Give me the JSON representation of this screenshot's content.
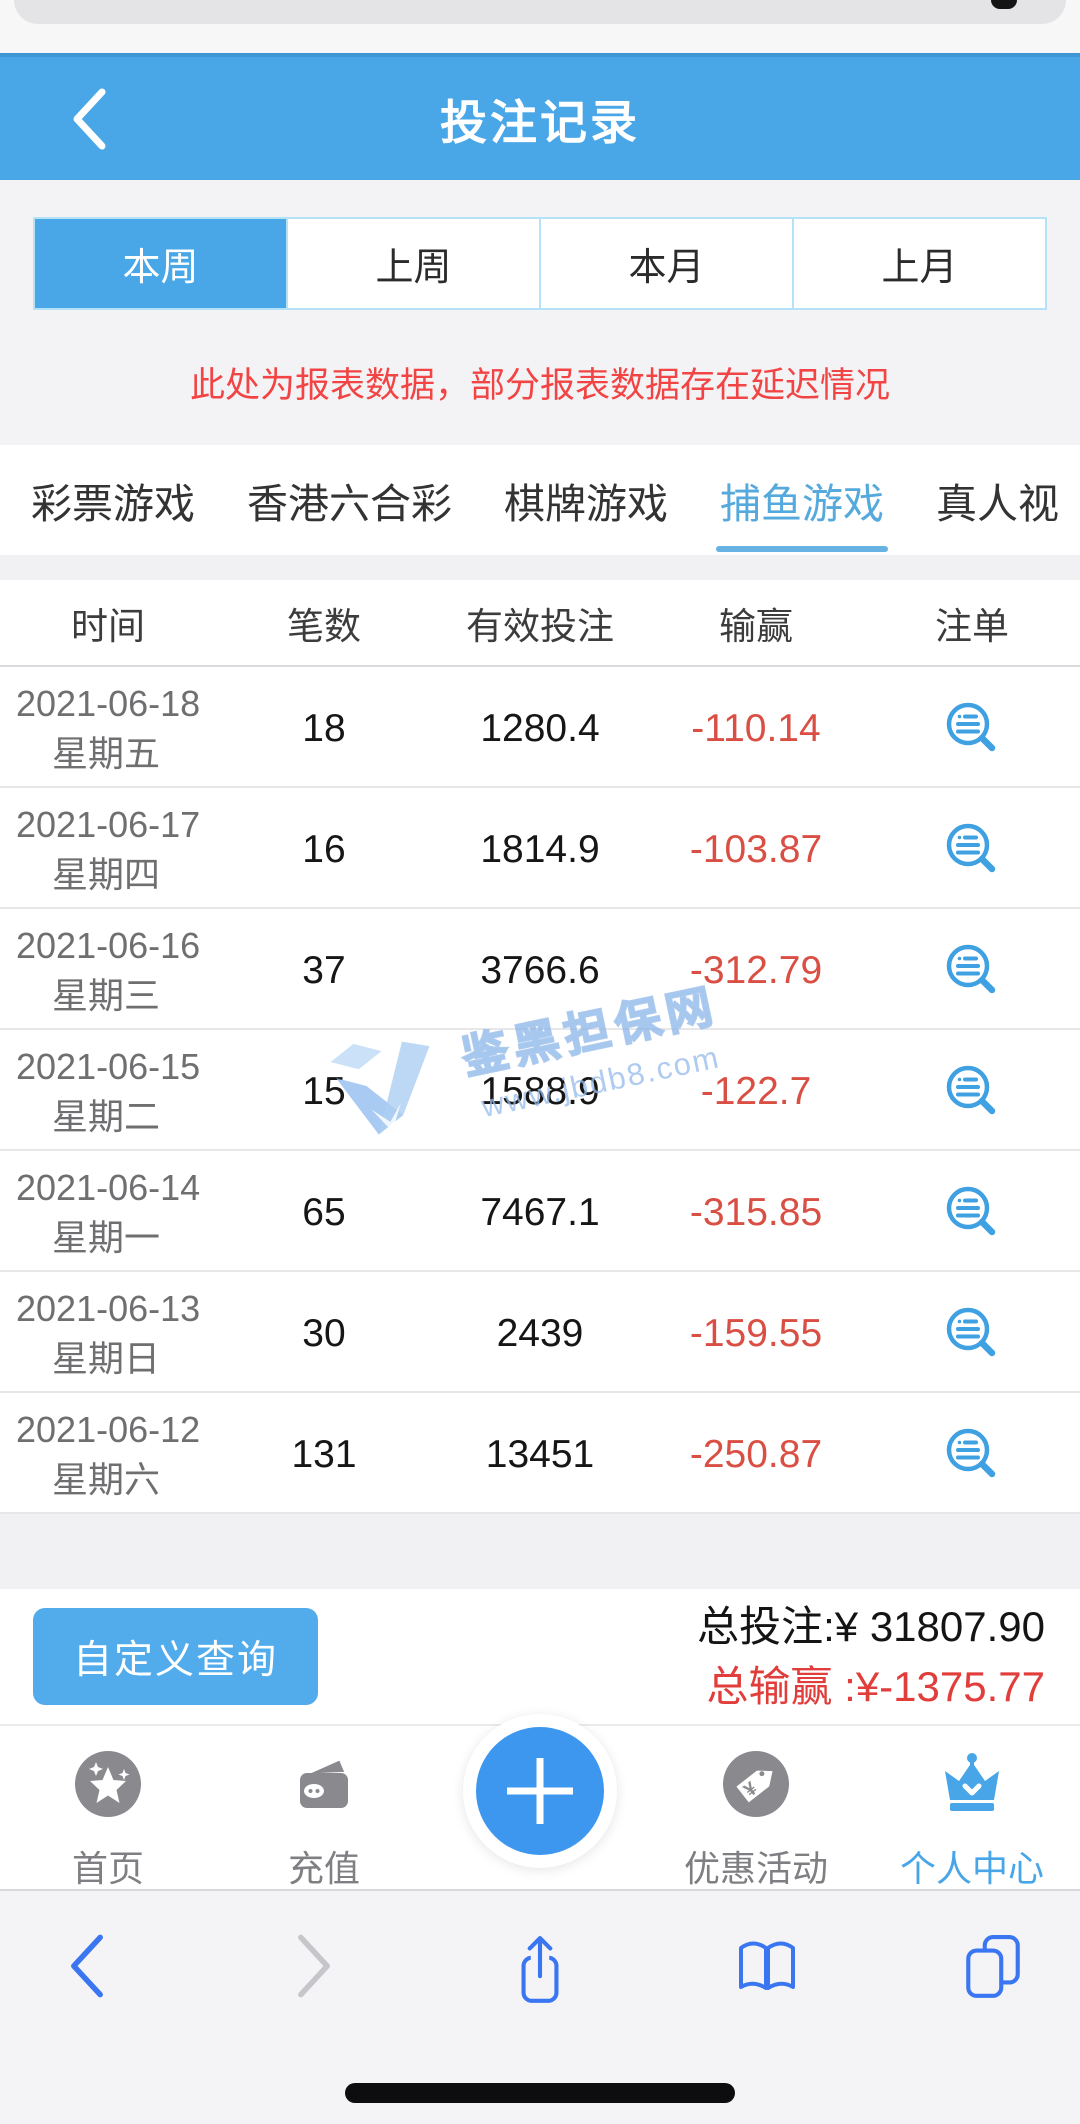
{
  "browser_top": {
    "reload_icon": "reload-remnant"
  },
  "header": {
    "title": "投注记录",
    "back_icon": "chevron-left-icon"
  },
  "period_tabs": [
    {
      "id": "this-week",
      "label": "本周",
      "active": true
    },
    {
      "id": "last-week",
      "label": "上周",
      "active": false
    },
    {
      "id": "this-month",
      "label": "本月",
      "active": false
    },
    {
      "id": "last-month",
      "label": "上月",
      "active": false
    }
  ],
  "notice": "此处为报表数据，部分报表数据存在延迟情况",
  "category_tabs": [
    {
      "id": "lottery",
      "label": "彩票游戏",
      "active": false
    },
    {
      "id": "hk-lhc",
      "label": "香港六合彩",
      "active": false
    },
    {
      "id": "board-game",
      "label": "棋牌游戏",
      "active": false
    },
    {
      "id": "fishing",
      "label": "捕鱼游戏",
      "active": true
    },
    {
      "id": "live-video",
      "label": "真人视",
      "active": false
    }
  ],
  "table": {
    "columns": [
      "时间",
      "笔数",
      "有效投注",
      "输赢",
      "注单"
    ],
    "rows": [
      {
        "date": "2021-06-18",
        "weekday": "星期五",
        "count": "18",
        "valid_bet": "1280.4",
        "win_loss": "-110.14",
        "detail_icon": "order-detail-icon"
      },
      {
        "date": "2021-06-17",
        "weekday": "星期四",
        "count": "16",
        "valid_bet": "1814.9",
        "win_loss": "-103.87",
        "detail_icon": "order-detail-icon"
      },
      {
        "date": "2021-06-16",
        "weekday": "星期三",
        "count": "37",
        "valid_bet": "3766.6",
        "win_loss": "-312.79",
        "detail_icon": "order-detail-icon"
      },
      {
        "date": "2021-06-15",
        "weekday": "星期二",
        "count": "15",
        "valid_bet": "1588.9",
        "win_loss": "-122.7",
        "detail_icon": "order-detail-icon"
      },
      {
        "date": "2021-06-14",
        "weekday": "星期一",
        "count": "65",
        "valid_bet": "7467.1",
        "win_loss": "-315.85",
        "detail_icon": "order-detail-icon"
      },
      {
        "date": "2021-06-13",
        "weekday": "星期日",
        "count": "30",
        "valid_bet": "2439",
        "win_loss": "-159.55",
        "detail_icon": "order-detail-icon"
      },
      {
        "date": "2021-06-12",
        "weekday": "星期六",
        "count": "131",
        "valid_bet": "13451",
        "win_loss": "-250.87",
        "detail_icon": "order-detail-icon"
      }
    ]
  },
  "watermark": {
    "title": "鉴黑担保网",
    "url": "www.jbdb8.com",
    "logo": "jbdb8-logo"
  },
  "summary": {
    "query_button": "自定义查询",
    "total_bet": "总投注:¥ 31807.90",
    "total_winloss": "总输赢 :¥-1375.77"
  },
  "bottom_nav": {
    "items": [
      {
        "id": "home",
        "label": "首页",
        "icon": "home-stars-icon",
        "active": false
      },
      {
        "id": "recharge",
        "label": "充值",
        "icon": "wallet-icon",
        "active": false
      },
      {
        "id": "add",
        "label": "",
        "icon": "plus-icon",
        "active": false
      },
      {
        "id": "promotions",
        "label": "优惠活动",
        "icon": "promo-tag-icon",
        "active": false
      },
      {
        "id": "profile",
        "label": "个人中心",
        "icon": "crown-icon",
        "active": true
      }
    ]
  },
  "browser_toolbar": {
    "icons": [
      "back",
      "forward",
      "share",
      "bookmarks",
      "tabs"
    ]
  },
  "colors": {
    "accent_blue": "#49a7e8",
    "active_category": "#55a9dc",
    "row_icon_blue": "#3fa0e2",
    "negative_red": "#da4f44",
    "notice_red": "#f24444",
    "summary_red": "#e03d3b",
    "safari_blue": "#3b76f2",
    "nav_grey": "#8a8a8e"
  }
}
